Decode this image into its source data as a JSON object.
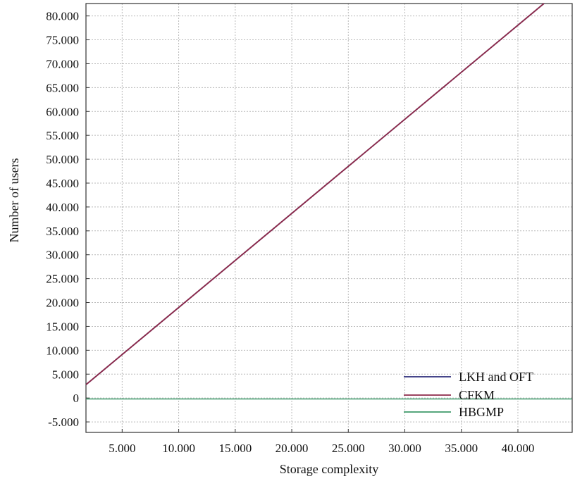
{
  "chart_data": {
    "type": "line",
    "title": "",
    "xlabel": "Storage complexity",
    "ylabel": "Number of users",
    "xlim": [
      1800,
      44800
    ],
    "ylim": [
      -7200,
      82600
    ],
    "x_ticks": [
      5000,
      10000,
      15000,
      20000,
      25000,
      30000,
      35000,
      40000
    ],
    "x_tick_labels": [
      "5.000",
      "10.000",
      "15.000",
      "20.000",
      "25.000",
      "30.000",
      "35.000",
      "40.000"
    ],
    "y_ticks": [
      -5000,
      0,
      5000,
      10000,
      15000,
      20000,
      25000,
      30000,
      35000,
      40000,
      45000,
      50000,
      55000,
      60000,
      65000,
      70000,
      75000,
      80000
    ],
    "y_tick_labels": [
      "-5.000",
      "0",
      "5.000",
      "10.000",
      "15.000",
      "20.000",
      "25.000",
      "30.000",
      "35.000",
      "40.000",
      "45.000",
      "50.000",
      "55.000",
      "60.000",
      "65.000",
      "70.000",
      "75.000",
      "80.000"
    ],
    "grid": true,
    "legend_position": "bottom-right",
    "series": [
      {
        "name": "LKH and OFT",
        "color": "#2b2b7a",
        "x": [
          1800,
          42300
        ],
        "y": [
          2800,
          82600
        ]
      },
      {
        "name": "CFKM",
        "color": "#8e2a4a",
        "x": [
          1800,
          42300
        ],
        "y": [
          2800,
          82600
        ]
      },
      {
        "name": "HBGMP",
        "color": "#3f9a6a",
        "x": [
          1800,
          44800
        ],
        "y": [
          -200,
          -200
        ]
      }
    ]
  }
}
